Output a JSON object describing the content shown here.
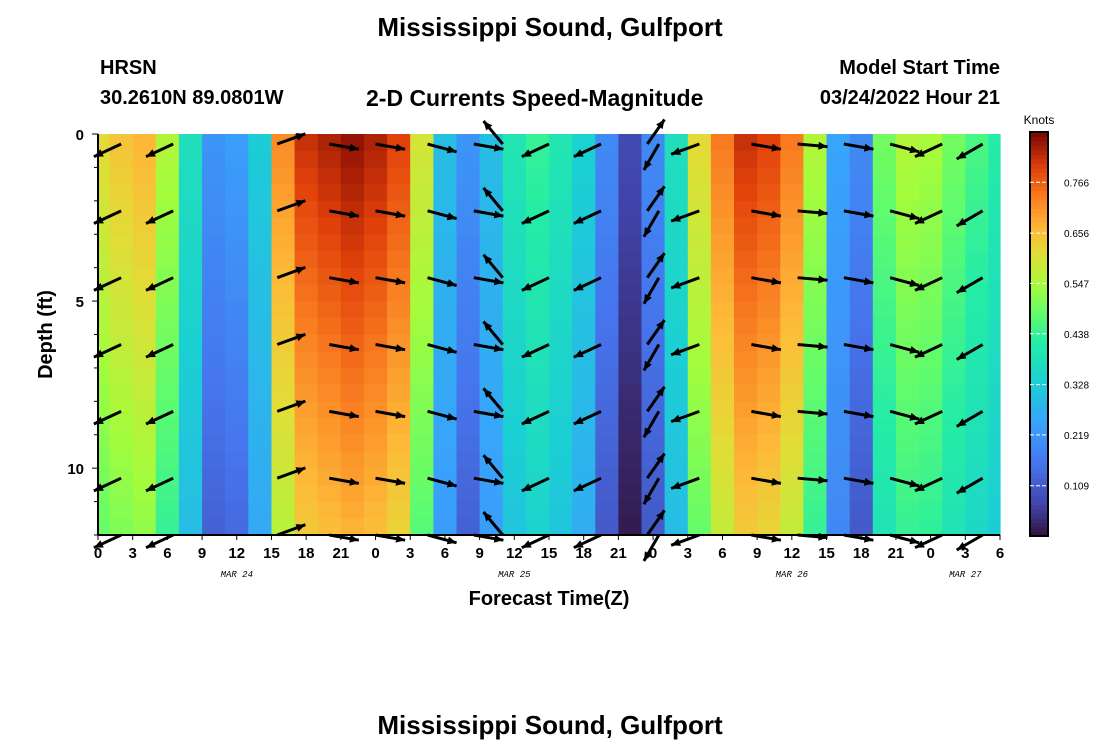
{
  "title": "Mississippi Sound, Gulfport",
  "footer_title": "Mississippi Sound, Gulfport",
  "station": {
    "id": "HRSN",
    "coords": "30.2610N  89.0801W"
  },
  "subtitle": "2-D Currents Speed-Magnitude",
  "model_start": {
    "label": "Model Start Time",
    "value": "03/24/2022 Hour 21"
  },
  "chart_data": {
    "type": "heatmap",
    "title": "2-D Currents Speed-Magnitude",
    "xlabel": "Forecast Time(Z)",
    "ylabel": "Depth (ft)",
    "x_ticks": [
      "0",
      "3",
      "6",
      "9",
      "12",
      "15",
      "18",
      "21",
      "0",
      "3",
      "6",
      "9",
      "12",
      "15",
      "18",
      "21",
      "0",
      "3",
      "6",
      "9",
      "12",
      "15",
      "18",
      "21",
      "0",
      "3",
      "6"
    ],
    "x_range_hours": [
      0,
      78
    ],
    "date_labels": [
      {
        "text": "MAR 24",
        "hour": 12
      },
      {
        "text": "MAR 25",
        "hour": 36
      },
      {
        "text": "MAR 26",
        "hour": 60
      },
      {
        "text": "MAR 27",
        "hour": 75
      }
    ],
    "y_ticks": [
      "0",
      "5",
      "10"
    ],
    "ylim": [
      0,
      12
    ],
    "y_inverted": true,
    "colorbar": {
      "unit": "Knots",
      "ticks": [
        "0.766",
        "0.656",
        "0.547",
        "0.438",
        "0.328",
        "0.219",
        "0.109"
      ],
      "range": [
        0.0,
        0.875
      ]
    },
    "profile_hours": [
      0,
      2,
      4,
      6,
      8,
      10,
      12,
      14,
      16,
      18,
      20,
      22,
      24,
      26,
      28,
      30,
      32,
      34,
      36,
      38,
      40,
      42,
      44,
      46,
      48,
      50,
      52,
      54,
      56,
      58,
      60,
      62,
      64,
      66,
      68,
      70,
      72,
      74,
      76,
      78
    ],
    "surface_speed_kn": [
      0.62,
      0.65,
      0.67,
      0.56,
      0.38,
      0.22,
      0.24,
      0.33,
      0.72,
      0.82,
      0.84,
      0.86,
      0.84,
      0.8,
      0.6,
      0.3,
      0.22,
      0.3,
      0.4,
      0.44,
      0.4,
      0.34,
      0.2,
      0.08,
      0.2,
      0.38,
      0.62,
      0.74,
      0.82,
      0.8,
      0.74,
      0.56,
      0.25,
      0.2,
      0.5,
      0.56,
      0.55,
      0.5,
      0.46,
      0.42
    ],
    "vectors": {
      "hours": [
        2,
        6.5,
        15.5,
        20,
        24,
        28.5,
        32.5,
        35,
        39,
        43.5,
        47.5,
        48.5,
        52,
        56.5,
        60.5,
        64.5,
        68.5,
        73,
        76.5
      ],
      "depths_ft": [
        0.3,
        2.3,
        4.3,
        6.3,
        8.3,
        10.3,
        12
      ],
      "direction_deg": [
        -155,
        -155,
        20,
        -10,
        -10,
        -15,
        -10,
        130,
        -155,
        -155,
        55,
        -120,
        -160,
        -10,
        -5,
        -10,
        -15,
        -155,
        -150
      ]
    }
  }
}
